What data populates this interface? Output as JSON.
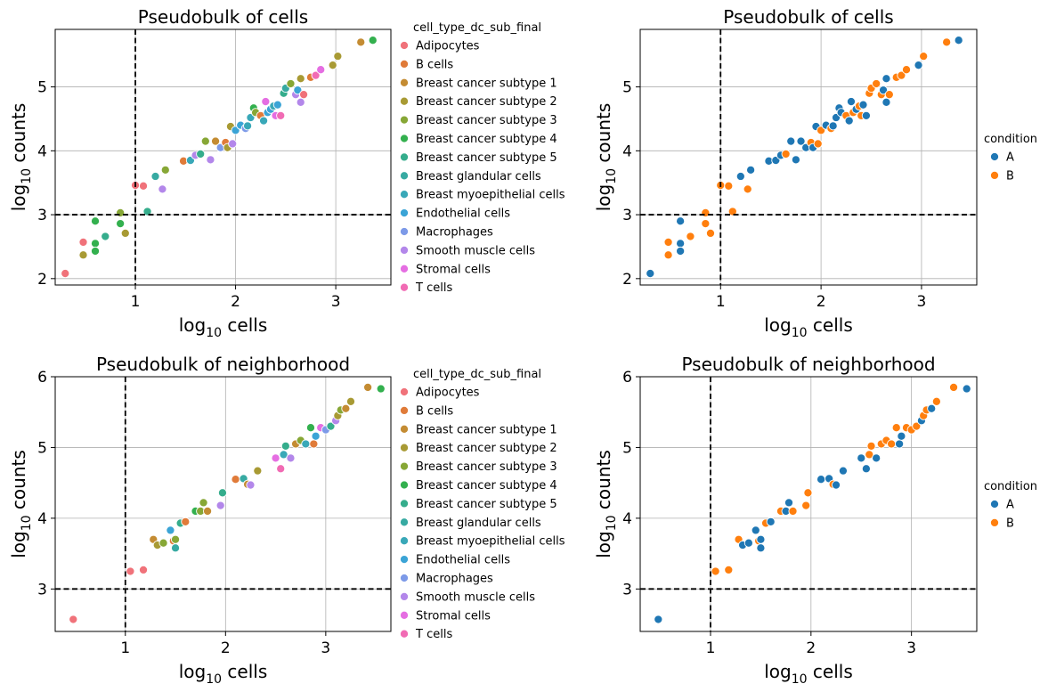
{
  "chart_data": [
    {
      "type": "scatter",
      "title": "Pseudobulk of cells",
      "xlabel_base": "log",
      "xlabel_sub": "10",
      "xlabel_rest": " cells",
      "ylabel_base": "log",
      "ylabel_sub": "10",
      "ylabel_rest": " counts",
      "xlim": [
        0.2,
        3.55
      ],
      "ylim": [
        1.9,
        5.9
      ],
      "xticks": [
        "1",
        "2",
        "3"
      ],
      "yticks": [
        "2",
        "3",
        "4",
        "5"
      ],
      "grid": true,
      "hline": 3,
      "vline": 1,
      "legend": {
        "title": "cell_type_dc_sub_final",
        "placement": "outside-right",
        "entries": [
          {
            "label": "Adipocytes",
            "color": "#f0727a"
          },
          {
            "label": "B cells",
            "color": "#e07b39"
          },
          {
            "label": "Breast cancer subtype 1",
            "color": "#c48c33"
          },
          {
            "label": "Breast cancer subtype 2",
            "color": "#a89a34"
          },
          {
            "label": "Breast cancer subtype 3",
            "color": "#87a736"
          },
          {
            "label": "Breast cancer subtype 4",
            "color": "#33b04e"
          },
          {
            "label": "Breast cancer subtype 5",
            "color": "#35ad8c"
          },
          {
            "label": "Breast glandular cells",
            "color": "#37aaa2"
          },
          {
            "label": "Breast myoepithelial cells",
            "color": "#39a8b8"
          },
          {
            "label": "Endothelial cells",
            "color": "#3ba4d6"
          },
          {
            "label": "Macrophages",
            "color": "#7d9ae8"
          },
          {
            "label": "Smooth muscle cells",
            "color": "#b387ea"
          },
          {
            "label": "Stromal cells",
            "color": "#e56ee2"
          },
          {
            "label": "T cells",
            "color": "#f16bb4"
          }
        ]
      },
      "points": [
        [
          0.3,
          2.08,
          0
        ],
        [
          0.48,
          2.57,
          0
        ],
        [
          0.48,
          2.37,
          3
        ],
        [
          0.6,
          2.9,
          5
        ],
        [
          0.6,
          2.55,
          5
        ],
        [
          0.6,
          2.43,
          5
        ],
        [
          0.7,
          2.66,
          6
        ],
        [
          0.85,
          3.03,
          4
        ],
        [
          0.85,
          2.86,
          5
        ],
        [
          0.9,
          2.71,
          3
        ],
        [
          1.0,
          3.46,
          0
        ],
        [
          1.08,
          3.45,
          0
        ],
        [
          1.12,
          3.05,
          6
        ],
        [
          1.2,
          3.6,
          7
        ],
        [
          1.27,
          3.4,
          11
        ],
        [
          1.3,
          3.7,
          4
        ],
        [
          1.48,
          3.84,
          1
        ],
        [
          1.55,
          3.85,
          8
        ],
        [
          1.6,
          3.93,
          11
        ],
        [
          1.65,
          3.95,
          6
        ],
        [
          1.7,
          4.15,
          4
        ],
        [
          1.75,
          3.86,
          11
        ],
        [
          1.8,
          4.15,
          2
        ],
        [
          1.85,
          4.05,
          10
        ],
        [
          1.9,
          4.13,
          1
        ],
        [
          1.92,
          4.05,
          3
        ],
        [
          1.95,
          4.38,
          3
        ],
        [
          1.97,
          4.11,
          11
        ],
        [
          2.0,
          4.32,
          9
        ],
        [
          2.05,
          4.4,
          9
        ],
        [
          2.1,
          4.35,
          10
        ],
        [
          2.12,
          4.39,
          8
        ],
        [
          2.15,
          4.52,
          8
        ],
        [
          2.18,
          4.67,
          5
        ],
        [
          2.2,
          4.6,
          4
        ],
        [
          2.25,
          4.55,
          1
        ],
        [
          2.28,
          4.47,
          8
        ],
        [
          2.3,
          4.77,
          12
        ],
        [
          2.32,
          4.6,
          9
        ],
        [
          2.35,
          4.65,
          9
        ],
        [
          2.38,
          4.7,
          8
        ],
        [
          2.4,
          4.55,
          12
        ],
        [
          2.42,
          4.72,
          9
        ],
        [
          2.45,
          4.55,
          13
        ],
        [
          2.48,
          4.9,
          6
        ],
        [
          2.5,
          4.98,
          7
        ],
        [
          2.55,
          5.05,
          4
        ],
        [
          2.6,
          4.88,
          11
        ],
        [
          2.62,
          4.95,
          9
        ],
        [
          2.65,
          5.13,
          3
        ],
        [
          2.65,
          4.76,
          11
        ],
        [
          2.68,
          4.88,
          0
        ],
        [
          2.75,
          5.15,
          1
        ],
        [
          2.8,
          5.18,
          13
        ],
        [
          2.85,
          5.27,
          12
        ],
        [
          2.97,
          5.34,
          3
        ],
        [
          3.02,
          5.48,
          3
        ],
        [
          3.25,
          5.7,
          2
        ],
        [
          3.37,
          5.73,
          5
        ]
      ]
    },
    {
      "type": "scatter",
      "title": "Pseudobulk of cells",
      "xlabel_base": "log",
      "xlabel_sub": "10",
      "xlabel_rest": " cells",
      "ylabel_base": "log",
      "ylabel_sub": "10",
      "ylabel_rest": " counts",
      "xlim": [
        0.2,
        3.55
      ],
      "ylim": [
        1.9,
        5.9
      ],
      "xticks": [
        "1",
        "2",
        "3"
      ],
      "yticks": [
        "2",
        "3",
        "4",
        "5"
      ],
      "grid": true,
      "hline": 3,
      "vline": 1,
      "legend": {
        "title": "condition",
        "placement": "outside-right",
        "entries": [
          {
            "label": "A",
            "color": "#1f77b4"
          },
          {
            "label": "B",
            "color": "#ff7f0e"
          }
        ]
      },
      "points": [
        [
          0.3,
          2.08,
          0
        ],
        [
          0.48,
          2.57,
          1
        ],
        [
          0.48,
          2.37,
          1
        ],
        [
          0.6,
          2.9,
          0
        ],
        [
          0.6,
          2.55,
          0
        ],
        [
          0.6,
          2.43,
          0
        ],
        [
          0.7,
          2.66,
          1
        ],
        [
          0.85,
          3.03,
          1
        ],
        [
          0.85,
          2.86,
          1
        ],
        [
          0.9,
          2.71,
          1
        ],
        [
          1.0,
          3.46,
          1
        ],
        [
          1.08,
          3.45,
          1
        ],
        [
          1.12,
          3.05,
          1
        ],
        [
          1.2,
          3.6,
          0
        ],
        [
          1.27,
          3.4,
          1
        ],
        [
          1.3,
          3.7,
          0
        ],
        [
          1.48,
          3.84,
          0
        ],
        [
          1.55,
          3.85,
          0
        ],
        [
          1.6,
          3.93,
          0
        ],
        [
          1.65,
          3.95,
          1
        ],
        [
          1.7,
          4.15,
          0
        ],
        [
          1.75,
          3.86,
          0
        ],
        [
          1.8,
          4.15,
          0
        ],
        [
          1.85,
          4.05,
          0
        ],
        [
          1.9,
          4.13,
          1
        ],
        [
          1.92,
          4.05,
          0
        ],
        [
          1.95,
          4.38,
          0
        ],
        [
          1.97,
          4.11,
          1
        ],
        [
          2.0,
          4.32,
          1
        ],
        [
          2.05,
          4.4,
          0
        ],
        [
          2.1,
          4.35,
          1
        ],
        [
          2.12,
          4.39,
          0
        ],
        [
          2.15,
          4.52,
          0
        ],
        [
          2.18,
          4.67,
          0
        ],
        [
          2.2,
          4.6,
          0
        ],
        [
          2.25,
          4.55,
          1
        ],
        [
          2.28,
          4.47,
          0
        ],
        [
          2.3,
          4.77,
          0
        ],
        [
          2.32,
          4.6,
          1
        ],
        [
          2.35,
          4.65,
          0
        ],
        [
          2.38,
          4.7,
          1
        ],
        [
          2.4,
          4.55,
          1
        ],
        [
          2.42,
          4.72,
          0
        ],
        [
          2.45,
          4.55,
          0
        ],
        [
          2.48,
          4.9,
          1
        ],
        [
          2.5,
          4.98,
          1
        ],
        [
          2.55,
          5.05,
          1
        ],
        [
          2.6,
          4.88,
          1
        ],
        [
          2.62,
          4.95,
          0
        ],
        [
          2.65,
          5.13,
          0
        ],
        [
          2.65,
          4.76,
          0
        ],
        [
          2.68,
          4.88,
          1
        ],
        [
          2.75,
          5.15,
          1
        ],
        [
          2.8,
          5.18,
          1
        ],
        [
          2.85,
          5.27,
          1
        ],
        [
          2.97,
          5.34,
          0
        ],
        [
          3.02,
          5.48,
          1
        ],
        [
          3.25,
          5.7,
          1
        ],
        [
          3.37,
          5.73,
          0
        ]
      ]
    },
    {
      "type": "scatter",
      "title": "Pseudobulk of neighborhood",
      "xlabel_base": "log",
      "xlabel_sub": "10",
      "xlabel_rest": " cells",
      "ylabel_base": "log",
      "ylabel_sub": "10",
      "ylabel_rest": " counts",
      "xlim": [
        0.3,
        3.65
      ],
      "ylim": [
        2.4,
        6.0
      ],
      "xticks": [
        "1",
        "2",
        "3"
      ],
      "yticks": [
        "3",
        "4",
        "5",
        "6"
      ],
      "grid": true,
      "hline": 3,
      "vline": 1,
      "legend": {
        "title": "cell_type_dc_sub_final",
        "placement": "outside-right",
        "entries": [
          {
            "label": "Adipocytes",
            "color": "#f0727a"
          },
          {
            "label": "B cells",
            "color": "#e07b39"
          },
          {
            "label": "Breast cancer subtype 1",
            "color": "#c48c33"
          },
          {
            "label": "Breast cancer subtype 2",
            "color": "#a89a34"
          },
          {
            "label": "Breast cancer subtype 3",
            "color": "#87a736"
          },
          {
            "label": "Breast cancer subtype 4",
            "color": "#33b04e"
          },
          {
            "label": "Breast cancer subtype 5",
            "color": "#35ad8c"
          },
          {
            "label": "Breast glandular cells",
            "color": "#37aaa2"
          },
          {
            "label": "Breast myoepithelial cells",
            "color": "#39a8b8"
          },
          {
            "label": "Endothelial cells",
            "color": "#3ba4d6"
          },
          {
            "label": "Macrophages",
            "color": "#7d9ae8"
          },
          {
            "label": "Smooth muscle cells",
            "color": "#b387ea"
          },
          {
            "label": "Stromal cells",
            "color": "#e56ee2"
          },
          {
            "label": "T cells",
            "color": "#f16bb4"
          }
        ]
      },
      "points": [
        [
          0.48,
          2.57,
          0
        ],
        [
          1.05,
          3.25,
          0
        ],
        [
          1.18,
          3.27,
          0
        ],
        [
          1.28,
          3.7,
          2
        ],
        [
          1.32,
          3.62,
          3
        ],
        [
          1.38,
          3.65,
          4
        ],
        [
          1.45,
          3.83,
          9
        ],
        [
          1.48,
          3.68,
          1
        ],
        [
          1.5,
          3.58,
          7
        ],
        [
          1.5,
          3.7,
          4
        ],
        [
          1.55,
          3.93,
          6
        ],
        [
          1.6,
          3.95,
          1
        ],
        [
          1.7,
          4.1,
          5
        ],
        [
          1.75,
          4.1,
          4
        ],
        [
          1.78,
          4.22,
          4
        ],
        [
          1.82,
          4.1,
          2
        ],
        [
          1.95,
          4.18,
          11
        ],
        [
          1.97,
          4.36,
          6
        ],
        [
          2.1,
          4.55,
          1
        ],
        [
          2.18,
          4.56,
          7
        ],
        [
          2.22,
          4.48,
          2
        ],
        [
          2.25,
          4.47,
          11
        ],
        [
          2.32,
          4.67,
          3
        ],
        [
          2.5,
          4.85,
          12
        ],
        [
          2.55,
          4.7,
          13
        ],
        [
          2.58,
          4.9,
          8
        ],
        [
          2.6,
          5.02,
          6
        ],
        [
          2.65,
          4.85,
          11
        ],
        [
          2.7,
          5.05,
          2
        ],
        [
          2.75,
          5.1,
          4
        ],
        [
          2.8,
          5.05,
          8
        ],
        [
          2.85,
          5.28,
          5
        ],
        [
          2.88,
          5.05,
          1
        ],
        [
          2.9,
          5.16,
          9
        ],
        [
          2.95,
          5.28,
          12
        ],
        [
          3.0,
          5.25,
          10
        ],
        [
          3.05,
          5.3,
          6
        ],
        [
          3.1,
          5.38,
          11
        ],
        [
          3.12,
          5.45,
          3
        ],
        [
          3.15,
          5.53,
          4
        ],
        [
          3.2,
          5.55,
          2
        ],
        [
          3.25,
          5.65,
          3
        ],
        [
          3.42,
          5.85,
          2
        ],
        [
          3.55,
          5.83,
          5
        ]
      ]
    },
    {
      "type": "scatter",
      "title": "Pseudobulk of neighborhood",
      "xlabel_base": "log",
      "xlabel_sub": "10",
      "xlabel_rest": " cells",
      "ylabel_base": "log",
      "ylabel_sub": "10",
      "ylabel_rest": " counts",
      "xlim": [
        0.3,
        3.65
      ],
      "ylim": [
        2.4,
        6.0
      ],
      "xticks": [
        "1",
        "2",
        "3"
      ],
      "yticks": [
        "3",
        "4",
        "5",
        "6"
      ],
      "grid": true,
      "hline": 3,
      "vline": 1,
      "legend": {
        "title": "condition",
        "placement": "outside-right",
        "entries": [
          {
            "label": "A",
            "color": "#1f77b4"
          },
          {
            "label": "B",
            "color": "#ff7f0e"
          }
        ]
      },
      "points": [
        [
          0.48,
          2.57,
          0
        ],
        [
          1.05,
          3.25,
          1
        ],
        [
          1.18,
          3.27,
          1
        ],
        [
          1.28,
          3.7,
          1
        ],
        [
          1.32,
          3.62,
          0
        ],
        [
          1.38,
          3.65,
          0
        ],
        [
          1.45,
          3.83,
          0
        ],
        [
          1.48,
          3.68,
          1
        ],
        [
          1.5,
          3.58,
          0
        ],
        [
          1.5,
          3.7,
          0
        ],
        [
          1.55,
          3.93,
          1
        ],
        [
          1.6,
          3.95,
          0
        ],
        [
          1.7,
          4.1,
          1
        ],
        [
          1.75,
          4.1,
          0
        ],
        [
          1.78,
          4.22,
          0
        ],
        [
          1.82,
          4.1,
          1
        ],
        [
          1.95,
          4.18,
          1
        ],
        [
          1.97,
          4.36,
          1
        ],
        [
          2.1,
          4.55,
          0
        ],
        [
          2.18,
          4.56,
          0
        ],
        [
          2.22,
          4.48,
          1
        ],
        [
          2.25,
          4.47,
          0
        ],
        [
          2.32,
          4.67,
          0
        ],
        [
          2.5,
          4.85,
          0
        ],
        [
          2.55,
          4.7,
          0
        ],
        [
          2.58,
          4.9,
          1
        ],
        [
          2.6,
          5.02,
          1
        ],
        [
          2.65,
          4.85,
          0
        ],
        [
          2.7,
          5.05,
          1
        ],
        [
          2.75,
          5.1,
          1
        ],
        [
          2.8,
          5.05,
          1
        ],
        [
          2.85,
          5.28,
          1
        ],
        [
          2.88,
          5.05,
          0
        ],
        [
          2.9,
          5.16,
          0
        ],
        [
          2.95,
          5.28,
          1
        ],
        [
          3.0,
          5.25,
          1
        ],
        [
          3.05,
          5.3,
          1
        ],
        [
          3.1,
          5.38,
          0
        ],
        [
          3.12,
          5.45,
          1
        ],
        [
          3.15,
          5.53,
          1
        ],
        [
          3.2,
          5.55,
          0
        ],
        [
          3.25,
          5.65,
          1
        ],
        [
          3.42,
          5.85,
          1
        ],
        [
          3.55,
          5.83,
          0
        ]
      ]
    }
  ]
}
